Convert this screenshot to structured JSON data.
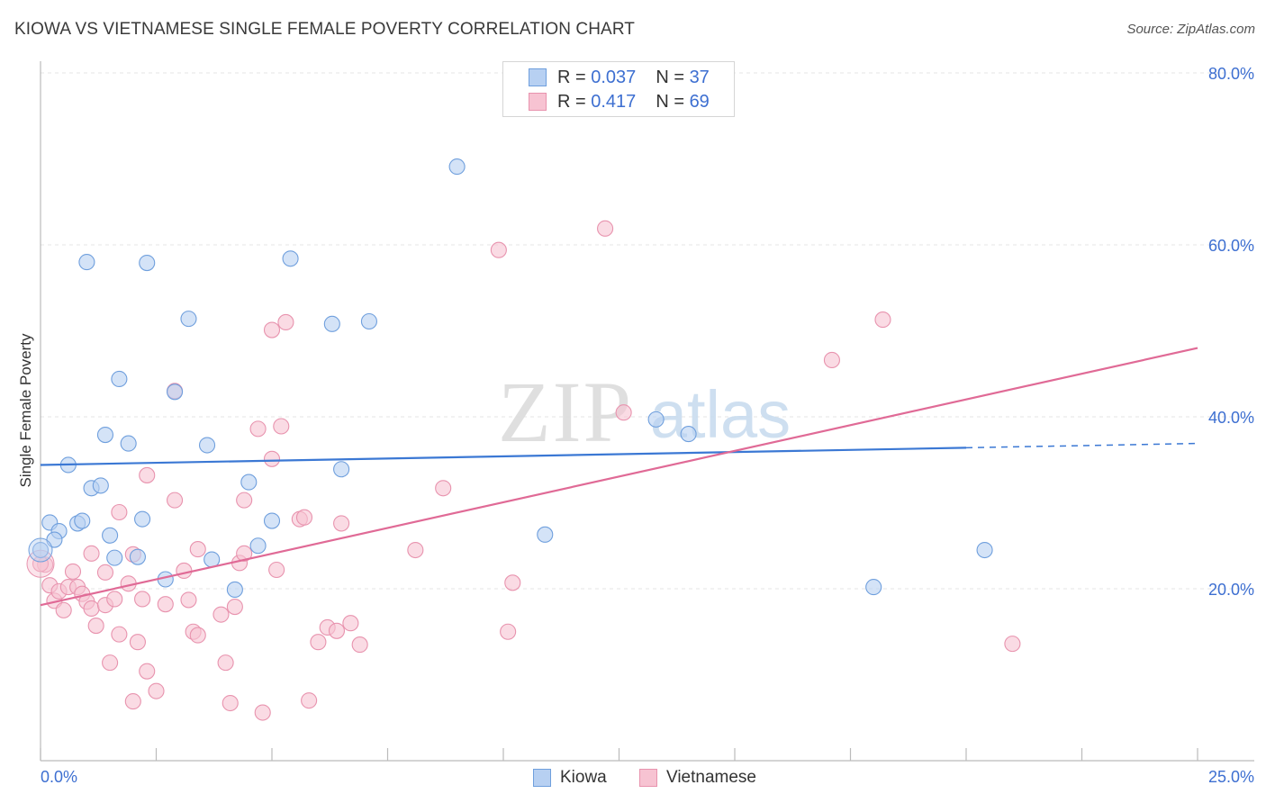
{
  "header": {
    "title": "KIOWA VS VIETNAMESE SINGLE FEMALE POVERTY CORRELATION CHART",
    "source": "Source: ZipAtlas.com"
  },
  "legend": {
    "kiowa": {
      "r_label": "R =",
      "r": "0.037",
      "n_label": "N =",
      "n": "37"
    },
    "vietnamese": {
      "r_label": "R =",
      "r": "0.417",
      "n_label": "N =",
      "n": "69"
    }
  },
  "bottom_legend": {
    "kiowa": "Kiowa",
    "vietnamese": "Vietnamese"
  },
  "watermark": {
    "zip": "ZIP",
    "atlas": "atlas"
  },
  "colors": {
    "kiowa_fill": "#b7d0f2",
    "kiowa_stroke": "#6f9fdd",
    "kiowa_line": "#3b78d4",
    "viet_fill": "#f7c3d2",
    "viet_stroke": "#e893ae",
    "viet_line": "#e06a96",
    "tick_label": "#3d6fd1"
  },
  "chart_data": {
    "type": "scatter",
    "title": "KIOWA VS VIETNAMESE SINGLE FEMALE POVERTY CORRELATION CHART",
    "xlabel": "",
    "ylabel": "Single Female Poverty",
    "xlim": [
      0,
      25
    ],
    "ylim": [
      0,
      82
    ],
    "x_tick_labels": [
      "0.0%",
      "25.0%"
    ],
    "y_ticks": [
      20,
      40,
      60,
      80
    ],
    "y_tick_labels": [
      "20.0%",
      "40.0%",
      "60.0%",
      "80.0%"
    ],
    "grid": true,
    "legend_position": "top-center",
    "series": [
      {
        "name": "Kiowa",
        "r": 0.037,
        "n": 37,
        "trend": {
          "x0": 0,
          "y0": 34.4,
          "x1": 20,
          "y1": 36.4,
          "dashed_to_x": 25,
          "dashed_to_y": 36.9
        },
        "points": [
          [
            0.0,
            24.5
          ],
          [
            0.2,
            27.7
          ],
          [
            0.4,
            26.7
          ],
          [
            0.3,
            25.7
          ],
          [
            0.6,
            34.4
          ],
          [
            0.8,
            27.6
          ],
          [
            0.9,
            27.9
          ],
          [
            1.0,
            58.0
          ],
          [
            1.1,
            31.7
          ],
          [
            1.3,
            32.0
          ],
          [
            1.4,
            37.9
          ],
          [
            1.5,
            26.2
          ],
          [
            1.6,
            23.6
          ],
          [
            1.7,
            44.4
          ],
          [
            1.9,
            36.9
          ],
          [
            2.1,
            23.7
          ],
          [
            2.2,
            28.1
          ],
          [
            2.3,
            57.9
          ],
          [
            2.7,
            21.1
          ],
          [
            2.9,
            42.9
          ],
          [
            3.2,
            51.4
          ],
          [
            3.6,
            36.7
          ],
          [
            3.7,
            23.4
          ],
          [
            4.2,
            19.9
          ],
          [
            4.5,
            32.4
          ],
          [
            4.7,
            25.0
          ],
          [
            5.0,
            27.9
          ],
          [
            5.4,
            58.4
          ],
          [
            6.3,
            50.8
          ],
          [
            6.5,
            33.9
          ],
          [
            7.1,
            51.1
          ],
          [
            9.0,
            69.1
          ],
          [
            10.9,
            26.3
          ],
          [
            13.3,
            39.7
          ],
          [
            14.0,
            38.0
          ],
          [
            18.0,
            20.2
          ],
          [
            20.4,
            24.5
          ]
        ]
      },
      {
        "name": "Vietnamese",
        "r": 0.417,
        "n": 69,
        "trend": {
          "x0": 0,
          "y0": 18.1,
          "x1": 25,
          "y1": 48.0
        },
        "points": [
          [
            0.1,
            22.8
          ],
          [
            0.2,
            20.4
          ],
          [
            0.3,
            18.6
          ],
          [
            0.4,
            19.7
          ],
          [
            0.5,
            17.5
          ],
          [
            0.6,
            20.2
          ],
          [
            0.7,
            22.0
          ],
          [
            0.8,
            20.2
          ],
          [
            0.9,
            19.4
          ],
          [
            1.0,
            18.5
          ],
          [
            1.1,
            24.1
          ],
          [
            1.1,
            17.7
          ],
          [
            1.2,
            15.7
          ],
          [
            1.4,
            18.1
          ],
          [
            1.4,
            21.9
          ],
          [
            1.5,
            11.4
          ],
          [
            1.6,
            18.8
          ],
          [
            1.7,
            14.7
          ],
          [
            1.7,
            28.9
          ],
          [
            1.9,
            20.6
          ],
          [
            2.0,
            6.9
          ],
          [
            2.0,
            24.0
          ],
          [
            2.1,
            13.8
          ],
          [
            2.2,
            18.8
          ],
          [
            2.3,
            10.4
          ],
          [
            2.3,
            33.2
          ],
          [
            2.5,
            8.1
          ],
          [
            2.7,
            18.2
          ],
          [
            2.9,
            30.3
          ],
          [
            2.9,
            43.0
          ],
          [
            3.1,
            22.1
          ],
          [
            3.2,
            18.7
          ],
          [
            3.3,
            15.0
          ],
          [
            3.4,
            14.6
          ],
          [
            3.4,
            24.6
          ],
          [
            3.9,
            17.0
          ],
          [
            4.0,
            11.4
          ],
          [
            4.1,
            6.7
          ],
          [
            4.2,
            17.9
          ],
          [
            4.3,
            23.0
          ],
          [
            4.4,
            30.3
          ],
          [
            4.4,
            24.1
          ],
          [
            4.7,
            38.6
          ],
          [
            4.8,
            5.6
          ],
          [
            5.0,
            50.1
          ],
          [
            5.0,
            35.1
          ],
          [
            5.1,
            22.2
          ],
          [
            5.2,
            38.9
          ],
          [
            5.3,
            51.0
          ],
          [
            5.6,
            28.1
          ],
          [
            5.7,
            28.3
          ],
          [
            5.8,
            7.0
          ],
          [
            6.0,
            13.8
          ],
          [
            6.2,
            15.5
          ],
          [
            6.4,
            15.1
          ],
          [
            6.5,
            27.6
          ],
          [
            6.7,
            16.0
          ],
          [
            6.9,
            13.5
          ],
          [
            8.1,
            24.5
          ],
          [
            8.7,
            31.7
          ],
          [
            9.9,
            59.4
          ],
          [
            10.1,
            15.0
          ],
          [
            10.2,
            20.7
          ],
          [
            12.2,
            61.9
          ],
          [
            12.6,
            40.5
          ],
          [
            17.1,
            46.6
          ],
          [
            18.2,
            51.3
          ],
          [
            21.0,
            13.6
          ],
          [
            0.0,
            22.9
          ]
        ]
      }
    ]
  }
}
